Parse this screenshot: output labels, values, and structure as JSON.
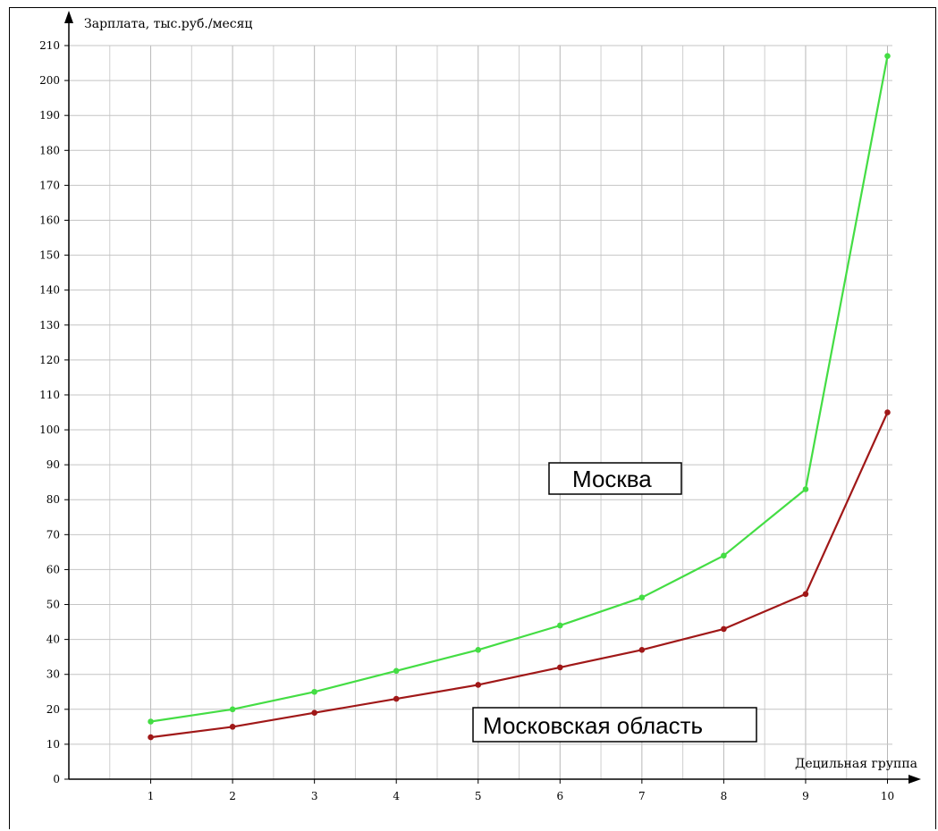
{
  "chart_data": {
    "type": "line",
    "ylabel": "Зарплата, тыс.руб./месяц",
    "xlabel": "Децильная группа",
    "ylim": [
      0,
      210
    ],
    "x": [
      1,
      2,
      3,
      4,
      5,
      6,
      7,
      8,
      9,
      10
    ],
    "y_ticks": [
      0,
      10,
      20,
      30,
      40,
      50,
      60,
      70,
      80,
      90,
      100,
      110,
      120,
      130,
      140,
      150,
      160,
      170,
      180,
      190,
      200,
      210
    ],
    "grid": true,
    "series": [
      {
        "name": "Москва",
        "color": "#44dd44",
        "values": [
          16.5,
          20,
          25,
          31,
          37,
          44,
          52,
          64,
          83,
          207
        ]
      },
      {
        "name": "Московская область",
        "color": "#a01818",
        "values": [
          12,
          15,
          19,
          23,
          27,
          32,
          37,
          43,
          53,
          105
        ]
      }
    ]
  }
}
